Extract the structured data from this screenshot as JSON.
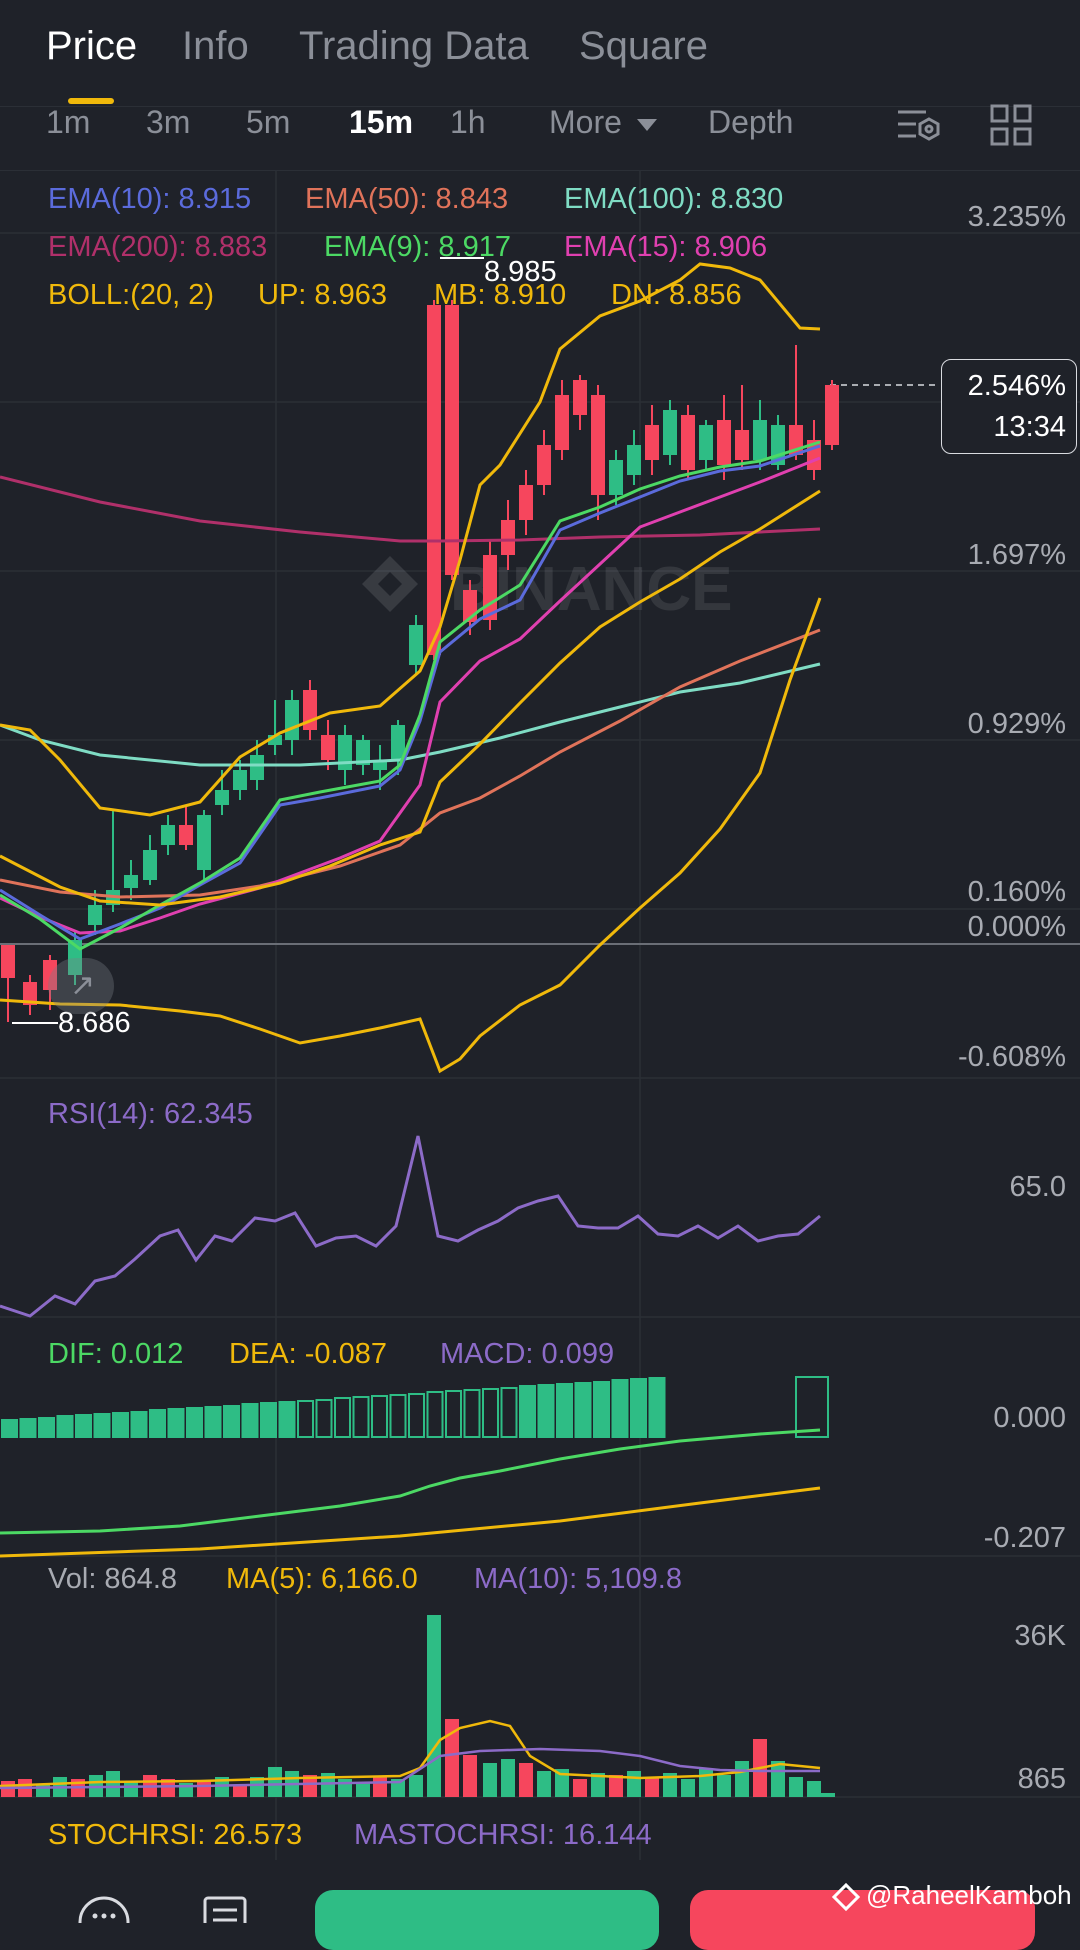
{
  "tabs": [
    {
      "label": "Price",
      "active": true
    },
    {
      "label": "Info",
      "active": false
    },
    {
      "label": "Trading Data",
      "active": false
    },
    {
      "label": "Square",
      "active": false
    }
  ],
  "intervals": [
    {
      "label": "1m",
      "active": false
    },
    {
      "label": "3m",
      "active": false
    },
    {
      "label": "5m",
      "active": false
    },
    {
      "label": "15m",
      "active": true
    },
    {
      "label": "1h",
      "active": false
    },
    {
      "label": "More",
      "active": false
    },
    {
      "label": "Depth",
      "active": false
    }
  ],
  "icons": [
    "chart-settings-icon",
    "grid-layout-icon",
    "chat-icon",
    "orders-icon",
    "binance-logo-icon"
  ],
  "indicators": {
    "ema10": "EMA(10): 8.915",
    "ema50": "EMA(50): 8.843",
    "ema100": "EMA(100): 8.830",
    "ema200": "EMA(200): 8.883",
    "ema9": "EMA(9): 8.917",
    "ema15": "EMA(15): 8.906",
    "boll": "BOLL:(20, 2)",
    "boll_up": "UP: 8.963",
    "boll_mb": "MB: 8.910",
    "boll_dn": "DN: 8.856"
  },
  "price_axis": [
    "3.235%",
    "1.697%",
    "0.929%",
    "0.160%",
    "0.000%",
    "-0.608%"
  ],
  "current": {
    "percent": "2.546%",
    "countdown": "13:34"
  },
  "high_label": "8.985",
  "low_label": "8.686",
  "watermark": "BINANCE",
  "rsi": {
    "label": "RSI(14): 62.345",
    "axis": "65.0"
  },
  "macd": {
    "dif": "DIF: 0.012",
    "dea": "DEA: -0.087",
    "macd": "MACD: 0.099",
    "axis_top": "0.000",
    "axis_bottom": "-0.207"
  },
  "volume": {
    "vol": "Vol: 864.8",
    "ma5": "MA(5): 6,166.0",
    "ma10": "MA(10): 5,109.8",
    "axis_top": "36K",
    "axis_bottom": "865"
  },
  "stochrsi": {
    "stoch": "STOCHRSI: 26.573",
    "mastoch": "MASTOCHRSI: 16.144"
  },
  "credit": "@RaheelKamboh",
  "colors": {
    "up": "#2ebd85",
    "down": "#f6465d",
    "ema10": "#5b6bdc",
    "ema50": "#e0735a",
    "ema100": "#7fdcc4",
    "ema200": "#b0306a",
    "ema9": "#4cd964",
    "ema15": "#e040b0",
    "boll": "#f0b90b",
    "rsi": "#8c6bc8",
    "accent": "#f0b90b"
  }
}
